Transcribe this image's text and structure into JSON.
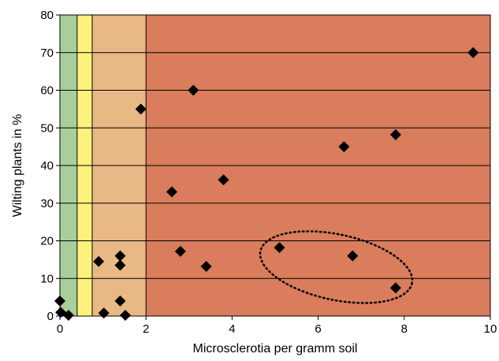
{
  "chart_data": {
    "type": "scatter",
    "title": "",
    "xlabel": "Microsclerotia per gramm soil",
    "ylabel": "Wilting plants in %",
    "xlim": [
      0,
      10
    ],
    "ylim": [
      0,
      80
    ],
    "xticks": [
      "0",
      "2",
      "4",
      "6",
      "8",
      "10"
    ],
    "yticks": [
      "0",
      "10",
      "20",
      "30",
      "40",
      "50",
      "60",
      "70",
      "80"
    ],
    "grid": "horizontal",
    "legend": "none",
    "marker": "diamond",
    "marker_color": "#000000",
    "background_bands": [
      {
        "from": 0,
        "to": 0.4,
        "color": "#a8cf9b"
      },
      {
        "from": 0.4,
        "to": 0.75,
        "color": "#fdf27e"
      },
      {
        "from": 0.75,
        "to": 2,
        "color": "#e9b985"
      },
      {
        "from": 2,
        "to": 10,
        "color": "#d97d5c"
      }
    ],
    "points": [
      {
        "x": 0.0,
        "y": 4.0
      },
      {
        "x": 0.02,
        "y": 1.0
      },
      {
        "x": 0.2,
        "y": 0.2
      },
      {
        "x": 0.9,
        "y": 14.5
      },
      {
        "x": 1.02,
        "y": 0.8
      },
      {
        "x": 1.4,
        "y": 16.0
      },
      {
        "x": 1.4,
        "y": 13.5
      },
      {
        "x": 1.4,
        "y": 4.0
      },
      {
        "x": 1.52,
        "y": 0.2
      },
      {
        "x": 1.88,
        "y": 55.0
      },
      {
        "x": 2.6,
        "y": 33.0
      },
      {
        "x": 2.8,
        "y": 17.2
      },
      {
        "x": 3.1,
        "y": 60.0
      },
      {
        "x": 3.4,
        "y": 13.2
      },
      {
        "x": 3.8,
        "y": 36.2
      },
      {
        "x": 5.1,
        "y": 18.2
      },
      {
        "x": 6.6,
        "y": 45.0
      },
      {
        "x": 6.8,
        "y": 16.0
      },
      {
        "x": 7.8,
        "y": 48.2
      },
      {
        "x": 7.8,
        "y": 7.5
      },
      {
        "x": 9.6,
        "y": 70.0
      }
    ],
    "annotations": [
      {
        "type": "dotted-ellipse",
        "around": "points at x 5.1, 6.8, 7.8 (low y)",
        "cx": 6.42,
        "cy": 13.0,
        "rx": 1.8,
        "ry": 8.7,
        "rotation_deg": 12
      }
    ]
  }
}
